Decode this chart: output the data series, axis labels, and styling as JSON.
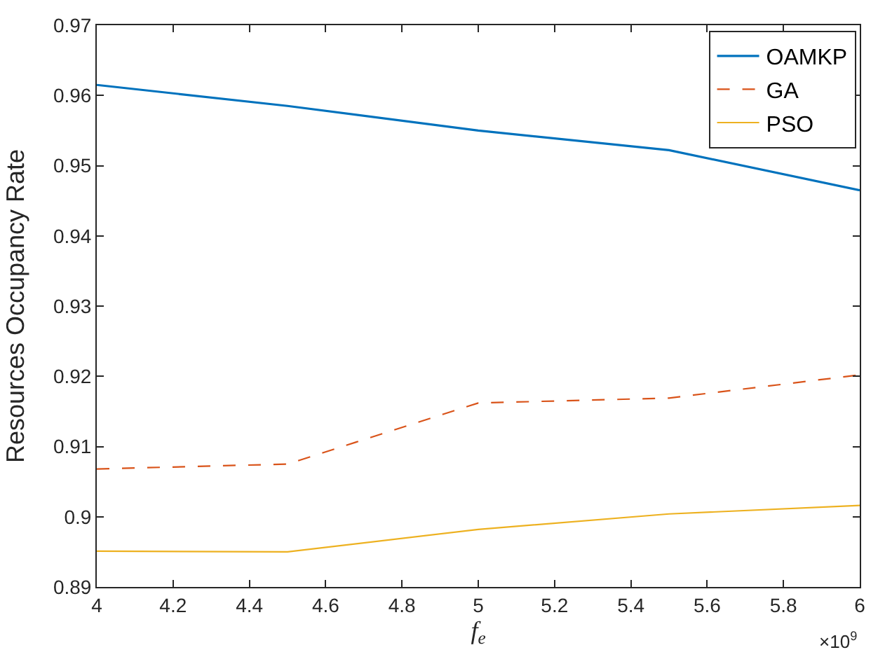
{
  "chart_data": {
    "type": "line",
    "xlabel": "f$_{e}$",
    "ylabel": "Resources Occupancy Rate",
    "x": [
      4,
      4.5,
      5,
      5.5,
      6
    ],
    "series": [
      {
        "name": "OAMKP",
        "color": "#0072bd",
        "line_style": "solid",
        "values": [
          0.9615,
          0.9585,
          0.955,
          0.9522,
          0.9465
        ]
      },
      {
        "name": "GA",
        "color": "#d95319",
        "line_style": "dashed",
        "values": [
          0.9068,
          0.9075,
          0.9162,
          0.9169,
          0.9202
        ]
      },
      {
        "name": "PSO",
        "color": "#edb120",
        "line_style": "solid",
        "values": [
          0.8951,
          0.895,
          0.8982,
          0.9004,
          0.9016
        ]
      }
    ],
    "xlim": [
      4,
      6
    ],
    "xticks": [
      4,
      4.2,
      4.4,
      4.6,
      4.8,
      5,
      5.2,
      5.4,
      5.6,
      5.8,
      6
    ],
    "ylim": [
      0.89,
      0.97
    ],
    "yticks": [
      0.89,
      0.9,
      0.91,
      0.92,
      0.93,
      0.94,
      0.95,
      0.96,
      0.97
    ],
    "annotations": [
      "×10$^{9}$"
    ],
    "legend": "top right",
    "marker": "none"
  }
}
